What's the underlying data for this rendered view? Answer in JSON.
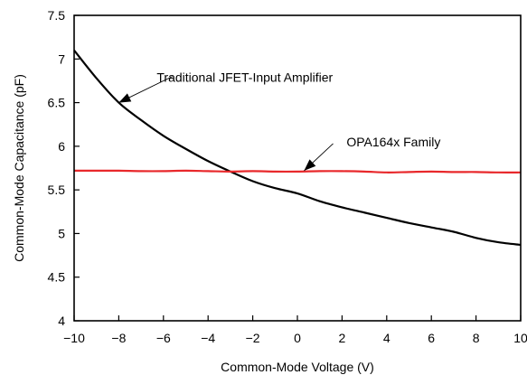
{
  "chart_data": {
    "type": "line",
    "xlabel": "Common-Mode Voltage (V)",
    "ylabel": "Common-Mode Capacitance (pF)",
    "xlim": [
      -10,
      10
    ],
    "ylim": [
      4,
      7.5
    ],
    "x_ticks": [
      -10,
      -8,
      -6,
      -4,
      -2,
      0,
      2,
      4,
      6,
      8,
      10
    ],
    "x_tick_labels": [
      "−10",
      "−8",
      "−6",
      "−4",
      "−2",
      "0",
      "2",
      "4",
      "6",
      "8",
      "10"
    ],
    "y_ticks": [
      4,
      4.5,
      5,
      5.5,
      6,
      6.5,
      7,
      7.5
    ],
    "y_tick_labels": [
      "4",
      "4.5",
      "5",
      "5.5",
      "6",
      "6.5",
      "7",
      "7.5"
    ],
    "grid": false,
    "series": [
      {
        "name": "Traditional JFET-Input Amplifier",
        "color": "#000000",
        "x": [
          -10,
          -9,
          -8,
          -7,
          -6,
          -5,
          -4,
          -3,
          -2,
          -1,
          0,
          1,
          2,
          3,
          4,
          5,
          6,
          7,
          8,
          9,
          10
        ],
        "y": [
          7.1,
          6.78,
          6.5,
          6.3,
          6.12,
          5.97,
          5.83,
          5.71,
          5.6,
          5.52,
          5.46,
          5.37,
          5.3,
          5.24,
          5.18,
          5.12,
          5.07,
          5.02,
          4.95,
          4.9,
          4.87
        ]
      },
      {
        "name": "OPA164x Family",
        "color": "#e8282b",
        "x": [
          -10,
          -9,
          -8,
          -7,
          -6,
          -5,
          -4,
          -3,
          -2,
          -1,
          0,
          1,
          2,
          3,
          4,
          5,
          6,
          7,
          8,
          9,
          10
        ],
        "y": [
          5.72,
          5.72,
          5.72,
          5.715,
          5.715,
          5.72,
          5.715,
          5.71,
          5.715,
          5.71,
          5.71,
          5.715,
          5.715,
          5.71,
          5.7,
          5.705,
          5.71,
          5.705,
          5.705,
          5.7,
          5.7
        ]
      }
    ],
    "annotations": [
      {
        "text": "Traditional JFET-Input Amplifier",
        "series": 0,
        "text_at": [
          -6.3,
          6.74
        ],
        "arrow_from": [
          -5.6,
          6.8
        ],
        "arrow_to": [
          -8,
          6.5
        ]
      },
      {
        "text": "OPA164x Family",
        "series": 1,
        "text_at": [
          2.2,
          6.0
        ],
        "arrow_from": [
          1.6,
          6.03
        ],
        "arrow_to": [
          0.3,
          5.72
        ]
      }
    ]
  }
}
